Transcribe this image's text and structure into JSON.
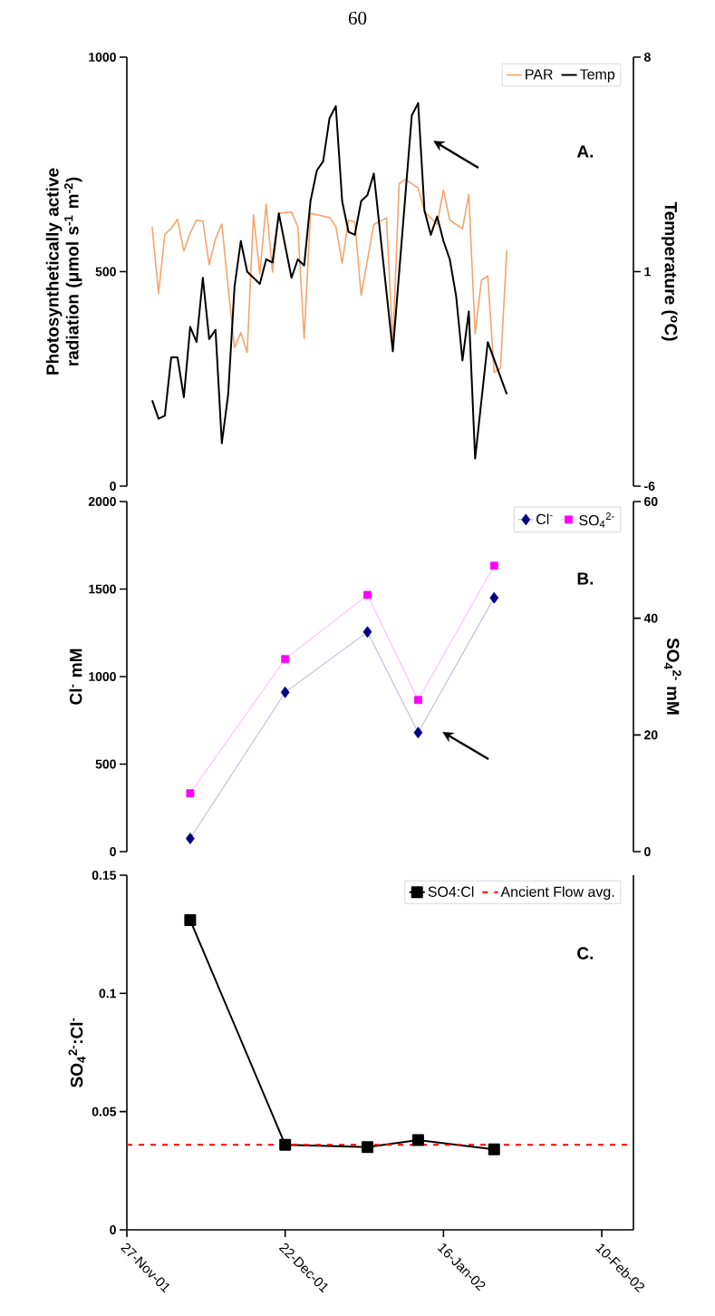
{
  "chart_data": [
    {
      "type": "line",
      "title": "60",
      "ylabel": "Photosynthetically active radiation (μmol s$^{-1}$ m$^{-2}$)",
      "y2label": "Temperature ($^{o}$C)",
      "annotations": [
        "A."
      ],
      "xlim": [
        "2001-11-27",
        "2002-02-15"
      ],
      "ylim": [
        0,
        1000
      ],
      "yticks": [
        0,
        500,
        1000
      ],
      "y2lim": [
        -6,
        8
      ],
      "y2ticks": [
        -6,
        1,
        8
      ],
      "tick_labels": "y",
      "legend": "top right",
      "series": [
        {
          "name": "PAR",
          "color": "#f5a46e",
          "x": [
            "2001-12-01",
            "2001-12-02",
            "2001-12-03",
            "2001-12-04",
            "2001-12-05",
            "2001-12-06",
            "2001-12-07",
            "2001-12-08",
            "2001-12-09",
            "2001-12-10",
            "2001-12-11",
            "2001-12-12",
            "2001-12-13",
            "2001-12-14",
            "2001-12-15",
            "2001-12-16",
            "2001-12-17",
            "2001-12-18",
            "2001-12-19",
            "2001-12-20",
            "2001-12-21",
            "2001-12-23",
            "2001-12-24",
            "2001-12-25",
            "2001-12-26",
            "2001-12-29",
            "2001-12-30",
            "2001-12-31",
            "2002-01-01",
            "2002-01-02",
            "2002-01-03",
            "2002-01-05",
            "2002-01-07",
            "2002-01-08",
            "2002-01-09",
            "2002-01-10",
            "2002-01-12",
            "2002-01-13",
            "2002-01-15",
            "2002-01-16",
            "2002-01-17",
            "2002-01-19",
            "2002-01-20",
            "2002-01-21",
            "2002-01-22",
            "2002-01-23",
            "2002-01-24",
            "2002-01-25",
            "2002-01-26"
          ],
          "values": [
            604,
            449,
            587,
            601,
            622,
            548,
            590,
            620,
            618,
            516,
            576,
            611,
            463,
            323,
            358,
            312,
            632,
            495,
            657,
            499,
            636,
            639,
            604,
            344,
            636,
            626,
            605,
            520,
            620,
            615,
            445,
            610,
            625,
            330,
            705,
            715,
            695,
            640,
            610,
            690,
            620,
            600,
            680,
            355,
            480,
            490,
            265,
            275,
            550
          ]
        },
        {
          "name": "Temp",
          "color": "#000000",
          "axis": "y2",
          "x": [
            "2001-12-01",
            "2001-12-02",
            "2001-12-03",
            "2001-12-04",
            "2001-12-05",
            "2001-12-06",
            "2001-12-07",
            "2001-12-08",
            "2001-12-09",
            "2001-12-10",
            "2001-12-11",
            "2001-12-12",
            "2001-12-13",
            "2001-12-14",
            "2001-12-15",
            "2001-12-16",
            "2001-12-18",
            "2001-12-19",
            "2001-12-20",
            "2001-12-21",
            "2001-12-23",
            "2001-12-24",
            "2001-12-25",
            "2001-12-26",
            "2001-12-27",
            "2001-12-28",
            "2001-12-29",
            "2001-12-30",
            "2001-12-31",
            "2002-01-01",
            "2002-01-02",
            "2002-01-03",
            "2002-01-04",
            "2002-01-05",
            "2002-01-08",
            "2002-01-11",
            "2002-01-12",
            "2002-01-13",
            "2002-01-14",
            "2002-01-15",
            "2002-01-16",
            "2002-01-17",
            "2002-01-18",
            "2002-01-19",
            "2002-01-20",
            "2002-01-21",
            "2002-01-23",
            "2002-01-26"
          ],
          "values": [
            -3.2,
            -3.8,
            -3.7,
            -1.8,
            -1.8,
            -3.1,
            -0.8,
            -1.3,
            0.8,
            -1.2,
            -0.9,
            -4.6,
            -3.0,
            0.5,
            2.0,
            1.0,
            0.6,
            1.4,
            1.3,
            2.9,
            0.8,
            1.4,
            1.2,
            3.3,
            4.3,
            4.6,
            6.0,
            6.4,
            3.3,
            2.3,
            2.2,
            3.3,
            3.5,
            4.2,
            -1.6,
            6.1,
            6.5,
            3.0,
            2.2,
            2.8,
            2.0,
            1.4,
            0.2,
            -1.9,
            -0.3,
            -5.1,
            -1.3,
            -3.0
          ]
        }
      ]
    },
    {
      "type": "line",
      "ylabel": "Cl$^{-}$ mM",
      "y2label": "SO$_{4}$$^{2-}$ mM",
      "annotations": [
        "B."
      ],
      "xlim": [
        "2001-11-27",
        "2002-02-15"
      ],
      "ylim": [
        0,
        2000
      ],
      "yticks": [
        0,
        500,
        1000,
        1500,
        2000
      ],
      "y2lim": [
        0,
        60
      ],
      "y2ticks": [
        0,
        20,
        40,
        60
      ],
      "tick_labels": "y",
      "legend": "top right",
      "x": [
        "2001-12-07",
        "2001-12-22",
        "2002-01-04",
        "2002-01-12",
        "2002-01-24"
      ],
      "series": [
        {
          "name": "Cl$^{-}$",
          "color": "#000080",
          "marker": "diamond",
          "values": [
            75,
            910,
            1255,
            680,
            1450
          ]
        },
        {
          "name": "SO$_{4}$$^{2-}$",
          "color": "#ff00ff",
          "marker": "square",
          "axis": "y2",
          "values": [
            10,
            33,
            44,
            26,
            49
          ]
        }
      ]
    },
    {
      "type": "line",
      "ylabel": "SO$_{4}$$^{2-}$:Cl$^{-}$",
      "annotations": [
        "C."
      ],
      "xlim": [
        "2001-11-27",
        "2002-02-15"
      ],
      "xticks": [
        {
          "value": "2001-11-27",
          "label": "27-Nov-01"
        },
        {
          "value": "2001-12-22",
          "label": "22-Dec-01"
        },
        {
          "value": "2002-01-16",
          "label": "16-Jan-02"
        },
        {
          "value": "2002-02-10",
          "label": "10-Feb-02"
        }
      ],
      "ylim": [
        0,
        0.15
      ],
      "yticks": [
        0,
        0.05,
        0.1,
        0.15
      ],
      "legend": "top right",
      "marker": "square",
      "x": [
        "2001-12-07",
        "2001-12-22",
        "2002-01-04",
        "2002-01-12",
        "2002-01-24"
      ],
      "series": [
        {
          "name": "SO4:Cl",
          "color": "#000000",
          "values": [
            0.131,
            0.036,
            0.035,
            0.038,
            0.034
          ]
        }
      ],
      "ref_lines": [
        {
          "axis": "y",
          "value": 0.036,
          "label": "Ancient Flow avg.",
          "color": "#ff0000",
          "line_style": "dashed"
        }
      ]
    }
  ]
}
